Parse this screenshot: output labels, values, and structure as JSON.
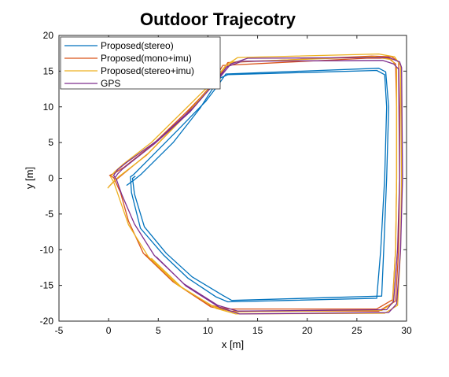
{
  "chart_data": {
    "type": "line",
    "title": "Outdoor Trajecotry",
    "xlabel": "x [m]",
    "ylabel": "y [m]",
    "xlim": [
      -5,
      30
    ],
    "ylim": [
      -20,
      20
    ],
    "xticks": [
      -5,
      0,
      5,
      10,
      15,
      20,
      25,
      30
    ],
    "yticks": [
      -20,
      -15,
      -10,
      -5,
      0,
      5,
      10,
      15,
      20
    ],
    "grid": false,
    "legend_position": "top-left",
    "series": [
      {
        "name": "Proposed(stereo)",
        "color": "#0072bd",
        "x": [
          1.8,
          2.6,
          3.3,
          6.5,
          9.2,
          10.5,
          11.0,
          12.0,
          27.0,
          27.8,
          28.0,
          27.8,
          27.4,
          27.0,
          12.0,
          10.8,
          8.0,
          5.5,
          3.2,
          2.3,
          2.2,
          2.5,
          4.0,
          7.0,
          9.8,
          11.0,
          11.8,
          27.2,
          27.9,
          28.2,
          28.0,
          27.7,
          27.5,
          12.4,
          11.5,
          8.4,
          5.8,
          3.6,
          2.6,
          2.4,
          2.7
        ],
        "y": [
          -1.0,
          -0.2,
          0.6,
          5.0,
          9.8,
          12.6,
          13.9,
          14.5,
          15.1,
          14.5,
          10.0,
          0.0,
          -10.0,
          -16.8,
          -17.3,
          -16.6,
          -14.0,
          -10.7,
          -7.0,
          -2.0,
          0.2,
          0.5,
          2.6,
          6.8,
          10.8,
          13.0,
          14.6,
          15.4,
          14.9,
          10.0,
          0.0,
          -10.0,
          -16.5,
          -17.1,
          -16.4,
          -13.8,
          -10.5,
          -6.8,
          -2.2,
          0.0,
          0.3
        ]
      },
      {
        "name": "Proposed(mono+imu)",
        "color": "#d95319",
        "x": [
          0.0,
          0.5,
          1.2,
          4.0,
          7.5,
          10.2,
          11.5,
          26.0,
          28.2,
          28.9,
          29.0,
          29.0,
          28.9,
          28.6,
          27.0,
          12.0,
          10.0,
          6.5,
          3.5,
          2.0,
          1.2,
          0.5,
          0.1,
          0.7,
          1.6,
          4.5,
          8.0,
          10.8,
          12.0,
          26.5,
          28.5,
          29.2,
          29.3,
          29.3,
          29.2,
          28.9,
          27.2,
          12.3,
          10.3,
          6.7,
          3.7
        ],
        "y": [
          -1.2,
          -0.5,
          0.3,
          3.5,
          8.5,
          12.8,
          15.8,
          16.8,
          16.8,
          16.0,
          10.0,
          0.0,
          -10.0,
          -17.0,
          -18.3,
          -18.3,
          -17.7,
          -14.5,
          -10.5,
          -6.0,
          -2.0,
          0.1,
          0.4,
          0.8,
          1.6,
          4.8,
          9.5,
          13.5,
          16.2,
          17.1,
          17.0,
          16.3,
          10.0,
          0.0,
          -10.0,
          -17.2,
          -18.6,
          -18.6,
          -18.0,
          -14.7,
          -10.7
        ]
      },
      {
        "name": "Proposed(stereo+imu)",
        "color": "#edb120",
        "x": [
          -0.1,
          0.4,
          1.0,
          3.8,
          7.2,
          9.8,
          11.2,
          12.5,
          26.8,
          28.5,
          29.0,
          29.0,
          28.9,
          28.6,
          27.5,
          12.5,
          10.5,
          7.0,
          4.0,
          2.0,
          1.0,
          0.5,
          0.2,
          0.6,
          1.4,
          4.3,
          7.8,
          10.5,
          11.8,
          13.0,
          27.2,
          28.8,
          29.4,
          29.5,
          29.4,
          29.1,
          27.8,
          12.8,
          10.8,
          7.3,
          4.3
        ],
        "y": [
          -1.4,
          -0.6,
          0.2,
          3.2,
          8.0,
          12.0,
          14.8,
          16.3,
          17.0,
          16.6,
          15.5,
          0.0,
          -10.0,
          -17.5,
          -18.5,
          -18.7,
          -17.9,
          -15.0,
          -11.0,
          -6.5,
          -2.5,
          -0.5,
          0.2,
          0.9,
          1.9,
          5.0,
          9.8,
          13.5,
          15.8,
          16.9,
          17.4,
          17.0,
          15.8,
          0.0,
          -10.0,
          -17.8,
          -18.9,
          -19.0,
          -18.2,
          -15.2,
          -11.2
        ]
      },
      {
        "name": "GPS",
        "color": "#7e2f8e",
        "x": [
          0.6,
          0.9,
          1.4,
          4.6,
          8.2,
          10.6,
          11.9,
          13.5,
          27.6,
          28.7,
          29.2,
          29.3,
          29.1,
          28.7,
          28.0,
          13.0,
          11.0,
          7.6,
          4.6,
          2.6,
          1.3,
          0.8,
          0.5,
          0.9,
          1.8,
          5.0,
          8.6,
          11.0,
          12.3,
          14.0,
          28.2,
          29.3,
          29.5,
          29.6,
          29.4,
          29.0,
          28.2,
          13.2,
          11.2,
          7.8,
          4.8
        ],
        "y": [
          0.0,
          0.6,
          1.3,
          4.8,
          9.3,
          13.2,
          15.6,
          16.4,
          16.5,
          16.0,
          15.3,
          0.0,
          -10.0,
          -17.2,
          -18.4,
          -18.6,
          -17.8,
          -14.8,
          -10.8,
          -6.4,
          -2.2,
          -0.2,
          0.4,
          1.2,
          2.2,
          5.4,
          10.0,
          13.8,
          16.0,
          16.8,
          16.9,
          16.3,
          15.5,
          0.0,
          -10.0,
          -17.6,
          -18.8,
          -19.0,
          -18.1,
          -15.1,
          -11.0
        ]
      }
    ]
  }
}
